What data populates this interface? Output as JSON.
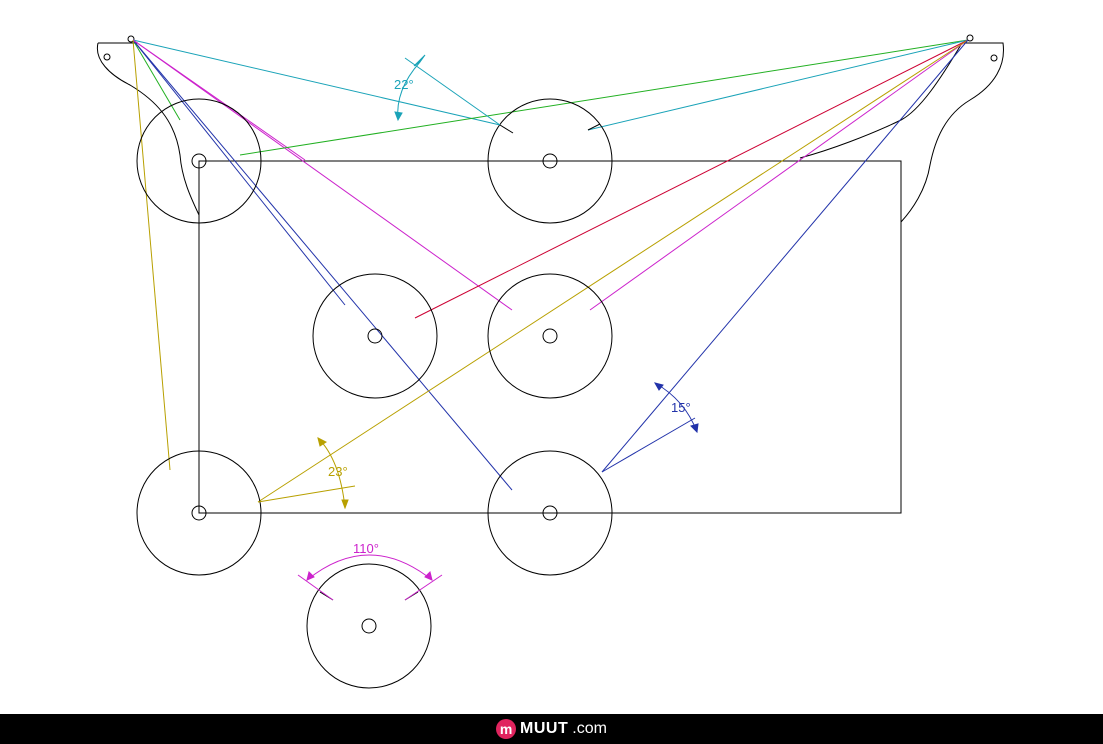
{
  "labels": {
    "angle_22": "22°",
    "angle_15": "15°",
    "angle_23": "23°",
    "angle_110": "110°"
  },
  "footer": {
    "brand_icon": "m",
    "brand_name": "MUUT",
    "brand_tld": ".com"
  },
  "colors": {
    "line": "#000000",
    "cyan": "#1aa3b8",
    "green": "#22b022",
    "blue": "#2233aa",
    "red": "#cc0033",
    "magenta": "#cc22cc",
    "olive": "#b8a000",
    "footer_bg": "#000000",
    "brand_icon_bg": "#e0245e"
  }
}
